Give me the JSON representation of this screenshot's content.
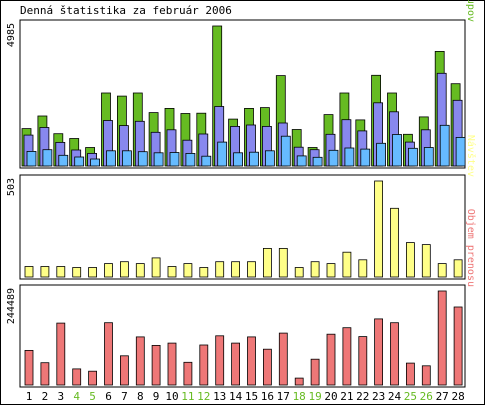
{
  "chart_data": {
    "title": "Denná štatistika za február 2006",
    "colors": {
      "hits": "#66bb22",
      "files": "#8888ee",
      "pages": "#66bbff",
      "visits": "#ffff88",
      "kbytes": "#ee7777",
      "day_normal": "#000000",
      "day_weekend": "#66bb22",
      "frame": "#000000",
      "background": "#ffffff"
    },
    "days": [
      "1",
      "2",
      "3",
      "4",
      "5",
      "6",
      "7",
      "8",
      "9",
      "10",
      "11",
      "12",
      "13",
      "14",
      "15",
      "16",
      "17",
      "18",
      "19",
      "20",
      "21",
      "22",
      "23",
      "24",
      "25",
      "26",
      "27",
      "28"
    ],
    "weekend_days": [
      "4",
      "5",
      "11",
      "12",
      "18",
      "19",
      "25",
      "26"
    ],
    "panels": [
      {
        "id": "requests",
        "type": "bar",
        "max_label": "4985",
        "max_value": 4985,
        "legend": [
          {
            "text": "Stránky",
            "color": "#66bbff"
          },
          {
            "text": " / ",
            "color": "#000000"
          },
          {
            "text": "Súborov",
            "color": "#8888ee"
          },
          {
            "text": " / ",
            "color": "#000000"
          },
          {
            "text": "Prístupov",
            "color": "#66bb22"
          }
        ],
        "series": [
          {
            "name": "Prístupov",
            "color": "#66bb22",
            "values": [
              1330,
              1780,
              1150,
              980,
              660,
              2600,
              2490,
              2600,
              1900,
              2050,
              1870,
              1880,
              4985,
              1670,
              2050,
              2080,
              3220,
              1300,
              660,
              1830,
              2600,
              1640,
              3230,
              2600,
              1130,
              1750,
              4080,
              2930
            ]
          },
          {
            "name": "Súborov",
            "color": "#8888ee",
            "values": [
              1100,
              1370,
              840,
              570,
              450,
              1620,
              1440,
              1590,
              1200,
              1290,
              920,
              1140,
              2120,
              1410,
              1460,
              1410,
              1530,
              670,
              580,
              1130,
              1650,
              1250,
              2250,
              1930,
              850,
              1290,
              3300,
              2340
            ]
          },
          {
            "name": "Stránky",
            "color": "#66bbff",
            "values": [
              520,
              580,
              380,
              320,
              250,
              540,
              540,
              510,
              470,
              480,
              450,
              350,
              850,
              470,
              490,
              540,
              1060,
              360,
              310,
              560,
              640,
              600,
              810,
              1120,
              630,
              660,
              1450,
              1020
            ]
          }
        ]
      },
      {
        "id": "visits",
        "type": "bar",
        "max_label": "503",
        "max_value": 503,
        "legend": [
          {
            "text": "Návštev",
            "color": "#ffff88"
          }
        ],
        "series": [
          {
            "name": "Návštev",
            "color": "#ffff88",
            "values": [
              55,
              55,
              55,
              50,
              50,
              70,
              80,
              70,
              100,
              55,
              70,
              50,
              80,
              80,
              80,
              150,
              150,
              50,
              80,
              70,
              130,
              90,
              503,
              360,
              180,
              170,
              70,
              90
            ]
          }
        ]
      },
      {
        "id": "kbytes",
        "type": "bar",
        "max_label": "244489",
        "max_value": 244489,
        "legend": [
          {
            "text": "Objem prenosu",
            "color": "#ee7777"
          }
        ],
        "series": [
          {
            "name": "Objem prenosu",
            "color": "#ee7777",
            "values": [
              90000,
              58000,
              161000,
              42000,
              36000,
              162000,
              76000,
              125000,
              103000,
              109000,
              59000,
              104000,
              128000,
              109000,
              125000,
              93000,
              135000,
              18000,
              67000,
              132000,
              149000,
              126000,
              172000,
              162000,
              57000,
              50000,
              244489,
              203000
            ]
          }
        ]
      }
    ]
  }
}
